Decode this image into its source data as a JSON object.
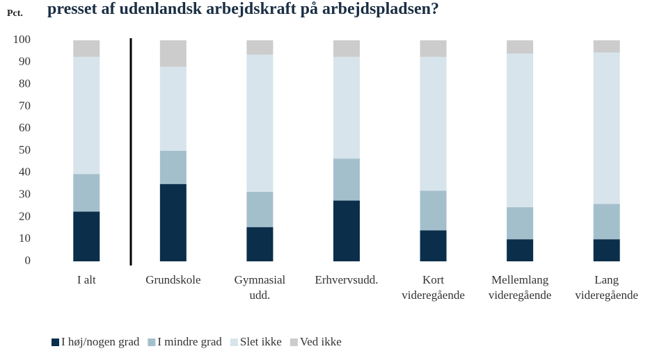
{
  "chart_data": {
    "type": "stacked_bar",
    "title": "presset af udenlandsk arbejdskraft på arbejdspladsen?",
    "y_label": "Pct.",
    "categories": [
      "I alt",
      "Grundskole",
      "Gymnasial\nudd.",
      "Erhvervsudd.",
      "Kort\nvideregående",
      "Mellemlang\nvideregående",
      "Lang\nvideregående"
    ],
    "series": [
      {
        "name": "I høj/nogen grad",
        "color": "#0b2f4b",
        "values": [
          22.5,
          35,
          15.5,
          27.5,
          14,
          10,
          10
        ]
      },
      {
        "name": "I mindre grad",
        "color": "#a4bfcc",
        "values": [
          17,
          15,
          16,
          19,
          18,
          14.5,
          16
        ]
      },
      {
        "name": "Slet ikke",
        "color": "#d7e4ec",
        "values": [
          53,
          38,
          62,
          46,
          60.5,
          69.5,
          68.5
        ]
      },
      {
        "name": "Ved ikke",
        "color": "#cccccc",
        "values": [
          7.5,
          12,
          6.5,
          7.5,
          7.5,
          6,
          5.5
        ]
      }
    ],
    "ylim": [
      0,
      100
    ],
    "yticks": [
      0,
      10,
      20,
      30,
      40,
      50,
      60,
      70,
      80,
      90,
      100
    ],
    "grid": false,
    "legend": "bottom"
  }
}
